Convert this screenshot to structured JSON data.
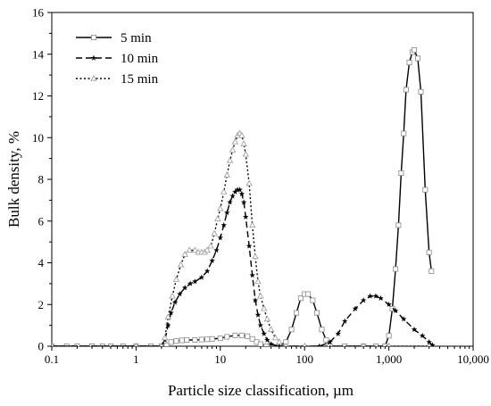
{
  "chart_data": {
    "type": "line",
    "xlabel": "Particle size classification, µm",
    "ylabel": "Bulk density, %",
    "xscale": "log",
    "xlim": [
      0.1,
      10000
    ],
    "ylim": [
      0,
      16
    ],
    "x_ticks": [
      {
        "value": 0.1,
        "label": "0.1"
      },
      {
        "value": 1,
        "label": "1"
      },
      {
        "value": 10,
        "label": "10"
      },
      {
        "value": 100,
        "label": "100"
      },
      {
        "value": 1000,
        "label": "1,000"
      },
      {
        "value": 10000,
        "label": "10,000"
      }
    ],
    "y_ticks": [
      0,
      2,
      4,
      6,
      8,
      10,
      12,
      14,
      16
    ],
    "grid": false,
    "legend_position": "top-left",
    "series": [
      {
        "name": "5 min",
        "line_style": "solid",
        "marker": "square",
        "points": [
          [
            0.1,
            0
          ],
          [
            0.15,
            0
          ],
          [
            0.2,
            0
          ],
          [
            0.3,
            0
          ],
          [
            0.4,
            0
          ],
          [
            0.5,
            0
          ],
          [
            0.7,
            0
          ],
          [
            1,
            0
          ],
          [
            1.5,
            0
          ],
          [
            2,
            0
          ],
          [
            2.3,
            0.05
          ],
          [
            2.6,
            0.2
          ],
          [
            3,
            0.25
          ],
          [
            3.5,
            0.28
          ],
          [
            4,
            0.3
          ],
          [
            5,
            0.3
          ],
          [
            6,
            0.32
          ],
          [
            7,
            0.33
          ],
          [
            8,
            0.35
          ],
          [
            10,
            0.38
          ],
          [
            12,
            0.45
          ],
          [
            15,
            0.52
          ],
          [
            18,
            0.52
          ],
          [
            21,
            0.48
          ],
          [
            24,
            0.35
          ],
          [
            27,
            0.2
          ],
          [
            30,
            0.1
          ],
          [
            35,
            0
          ],
          [
            40,
            0
          ],
          [
            50,
            0
          ],
          [
            60,
            0.2
          ],
          [
            70,
            0.8
          ],
          [
            80,
            1.6
          ],
          [
            90,
            2.3
          ],
          [
            100,
            2.5
          ],
          [
            110,
            2.5
          ],
          [
            125,
            2.2
          ],
          [
            140,
            1.6
          ],
          [
            160,
            0.8
          ],
          [
            180,
            0.3
          ],
          [
            200,
            0
          ],
          [
            300,
            0
          ],
          [
            500,
            0
          ],
          [
            700,
            0
          ],
          [
            900,
            0
          ],
          [
            1000,
            0.5
          ],
          [
            1100,
            1.8
          ],
          [
            1200,
            3.7
          ],
          [
            1300,
            5.8
          ],
          [
            1400,
            8.3
          ],
          [
            1500,
            10.2
          ],
          [
            1600,
            12.3
          ],
          [
            1750,
            13.6
          ],
          [
            1900,
            14.1
          ],
          [
            2000,
            14.2
          ],
          [
            2200,
            13.8
          ],
          [
            2400,
            12.2
          ],
          [
            2700,
            7.5
          ],
          [
            3000,
            4.5
          ],
          [
            3200,
            3.6
          ]
        ]
      },
      {
        "name": "10 min",
        "line_style": "dashed",
        "marker": "star",
        "points": [
          [
            0.1,
            0
          ],
          [
            1,
            0
          ],
          [
            2,
            0
          ],
          [
            2.2,
            0.3
          ],
          [
            2.4,
            1.0
          ],
          [
            2.6,
            1.6
          ],
          [
            2.9,
            2.1
          ],
          [
            3.3,
            2.5
          ],
          [
            3.8,
            2.8
          ],
          [
            4.4,
            3.0
          ],
          [
            5,
            3.1
          ],
          [
            6,
            3.3
          ],
          [
            7,
            3.6
          ],
          [
            8,
            4.1
          ],
          [
            9,
            4.6
          ],
          [
            10,
            5.2
          ],
          [
            11,
            5.8
          ],
          [
            12,
            6.4
          ],
          [
            13,
            6.9
          ],
          [
            14,
            7.2
          ],
          [
            15,
            7.4
          ],
          [
            16,
            7.5
          ],
          [
            17,
            7.5
          ],
          [
            18,
            7.3
          ],
          [
            19,
            6.9
          ],
          [
            20,
            6.2
          ],
          [
            22,
            4.8
          ],
          [
            24,
            3.4
          ],
          [
            26,
            2.2
          ],
          [
            28,
            1.5
          ],
          [
            30,
            1.0
          ],
          [
            33,
            0.6
          ],
          [
            36,
            0.3
          ],
          [
            40,
            0.1
          ],
          [
            50,
            0
          ],
          [
            100,
            0
          ],
          [
            150,
            0
          ],
          [
            200,
            0.2
          ],
          [
            250,
            0.6
          ],
          [
            300,
            1.2
          ],
          [
            400,
            1.8
          ],
          [
            500,
            2.2
          ],
          [
            600,
            2.4
          ],
          [
            700,
            2.4
          ],
          [
            800,
            2.3
          ],
          [
            1000,
            2.0
          ],
          [
            1200,
            1.7
          ],
          [
            1500,
            1.3
          ],
          [
            2000,
            0.8
          ],
          [
            2500,
            0.5
          ],
          [
            3000,
            0.2
          ],
          [
            3300,
            0.05
          ]
        ]
      },
      {
        "name": "15 min",
        "line_style": "dotted",
        "marker": "triangle",
        "points": [
          [
            0.1,
            0
          ],
          [
            1,
            0
          ],
          [
            2,
            0
          ],
          [
            2.2,
            0.4
          ],
          [
            2.4,
            1.4
          ],
          [
            2.7,
            2.4
          ],
          [
            3,
            3.2
          ],
          [
            3.4,
            3.9
          ],
          [
            3.8,
            4.4
          ],
          [
            4.3,
            4.6
          ],
          [
            5,
            4.6
          ],
          [
            5.5,
            4.5
          ],
          [
            6,
            4.5
          ],
          [
            6.5,
            4.5
          ],
          [
            7,
            4.6
          ],
          [
            7.7,
            4.8
          ],
          [
            8.5,
            5.4
          ],
          [
            9.3,
            6.1
          ],
          [
            10,
            6.6
          ],
          [
            11,
            7.4
          ],
          [
            12,
            8.2
          ],
          [
            13,
            8.9
          ],
          [
            14,
            9.4
          ],
          [
            15,
            9.8
          ],
          [
            16,
            10.1
          ],
          [
            17,
            10.2
          ],
          [
            18,
            10.1
          ],
          [
            19,
            9.7
          ],
          [
            20,
            9.2
          ],
          [
            22,
            7.8
          ],
          [
            24,
            5.8
          ],
          [
            26,
            4.3
          ],
          [
            28,
            3.1
          ],
          [
            30,
            2.4
          ],
          [
            33,
            1.8
          ],
          [
            36,
            1.3
          ],
          [
            40,
            0.8
          ],
          [
            45,
            0.4
          ],
          [
            50,
            0.2
          ],
          [
            60,
            0
          ],
          [
            100,
            0
          ],
          [
            500,
            0
          ],
          [
            1000,
            0
          ],
          [
            3000,
            0
          ]
        ]
      }
    ]
  }
}
